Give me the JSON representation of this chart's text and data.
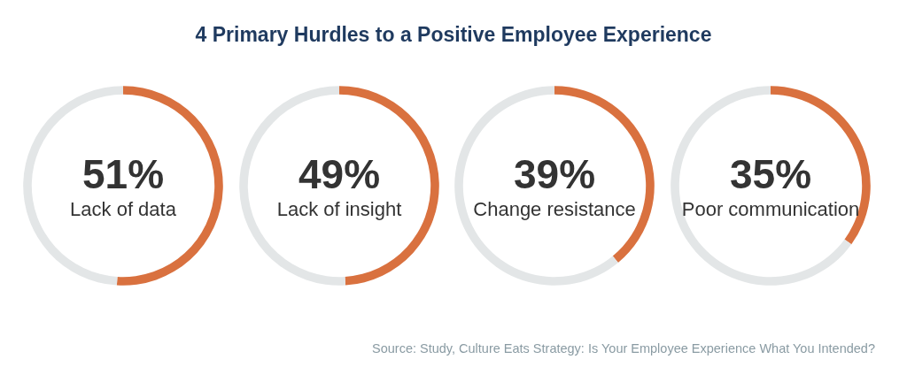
{
  "chart_data": [
    {
      "type": "donut",
      "title": "4 Primary Hurdles to a Positive Employee Experience",
      "categories": [
        "Lack of data",
        null
      ],
      "values": [
        51,
        49
      ],
      "colors": [
        "#d9713f",
        "#e3e6e7"
      ],
      "value_labels": [
        "51%",
        null
      ],
      "legend": false
    },
    {
      "type": "donut",
      "categories": [
        "Lack of insight",
        null
      ],
      "values": [
        49,
        51
      ],
      "colors": [
        "#d9713f",
        "#e3e6e7"
      ],
      "value_labels": [
        "49%",
        null
      ],
      "legend": false
    },
    {
      "type": "donut",
      "categories": [
        "Change resistance",
        null
      ],
      "values": [
        39,
        61
      ],
      "colors": [
        "#d9713f",
        "#e3e6e7"
      ],
      "value_labels": [
        "39%",
        null
      ],
      "legend": false
    },
    {
      "type": "donut",
      "categories": [
        "Poor communication",
        null
      ],
      "values": [
        35,
        65
      ],
      "colors": [
        "#d9713f",
        "#e3e6e7"
      ],
      "value_labels": [
        "35%",
        null
      ],
      "legend": false,
      "annotations": [
        "Source: Study, Culture Eats Strategy: Is Your Employee Experience What You Intended?"
      ]
    }
  ]
}
